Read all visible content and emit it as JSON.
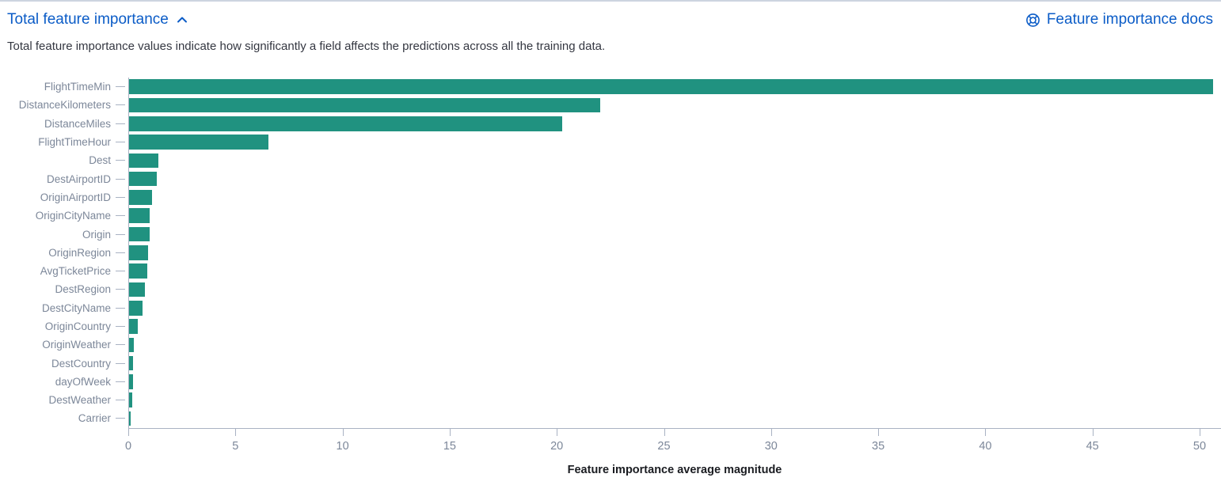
{
  "header": {
    "title": "Total feature importance",
    "docs_link_label": "Feature importance docs",
    "description": "Total feature importance values indicate how significantly a field affects the predictions across all the training data."
  },
  "icons": {
    "collapse": "chevron-up-icon",
    "docs": "lifebuoy-docs-icon"
  },
  "colors": {
    "accent_blue": "#0b5cc7",
    "bar_teal": "#209280",
    "axis_line": "#a9b2c3",
    "tick_text": "#7c8799",
    "description_text": "#343741",
    "axis_title_text": "#1a1c21"
  },
  "chart_data": {
    "type": "bar",
    "orientation": "horizontal",
    "title": "Total feature importance",
    "xlabel": "Feature importance average magnitude",
    "ylabel": "",
    "xlim": [
      0,
      51
    ],
    "x_ticks": [
      0,
      5,
      10,
      15,
      20,
      25,
      30,
      35,
      40,
      45,
      50
    ],
    "grid": false,
    "bar_color": "#209280",
    "categories": [
      "FlightTimeMin",
      "DistanceKilometers",
      "DistanceMiles",
      "FlightTimeHour",
      "Dest",
      "DestAirportID",
      "OriginAirportID",
      "OriginCityName",
      "Origin",
      "OriginRegion",
      "AvgTicketPrice",
      "DestRegion",
      "DestCityName",
      "OriginCountry",
      "OriginWeather",
      "DestCountry",
      "dayOfWeek",
      "DestWeather",
      "Carrier"
    ],
    "values": [
      50.6,
      22.0,
      20.2,
      6.5,
      1.37,
      1.3,
      1.08,
      0.97,
      0.95,
      0.89,
      0.85,
      0.74,
      0.63,
      0.41,
      0.22,
      0.18,
      0.18,
      0.13,
      0.06
    ]
  }
}
